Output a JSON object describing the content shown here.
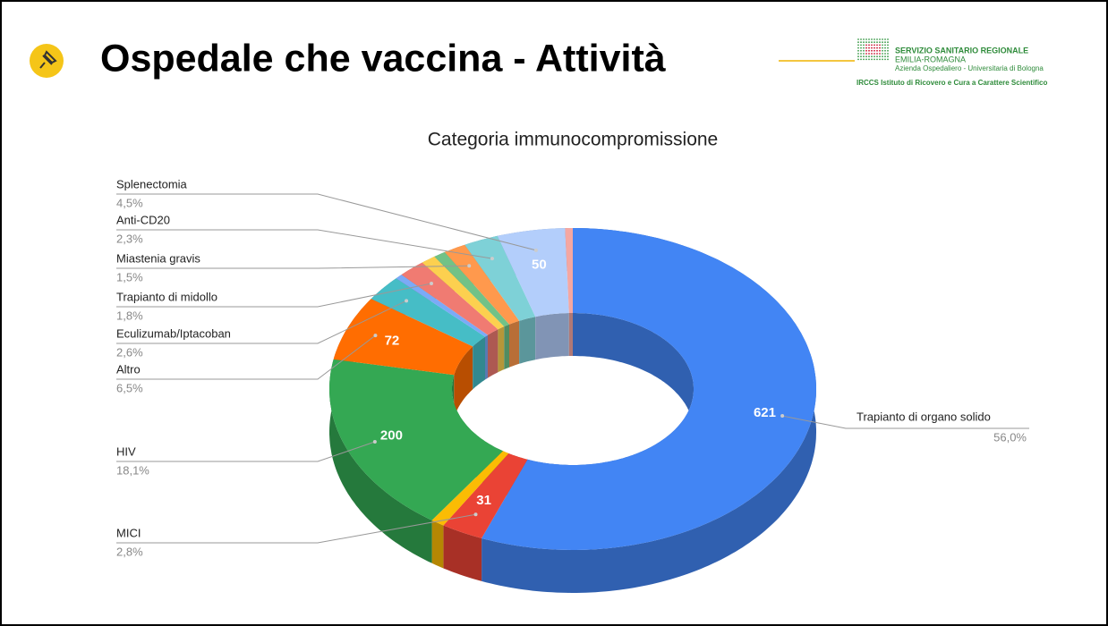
{
  "header": {
    "title": "Ospedale che vaccina - Attività",
    "logo": [
      "SERVIZIO SANITARIO REGIONALE",
      "EMILIA-ROMAGNA",
      "Azienda Ospedaliero - Universitaria di Bologna",
      "IRCCS Istituto di Ricovero e Cura a Carattere Scientifico"
    ]
  },
  "chart_data": {
    "type": "pie",
    "donut": true,
    "title": "Categoria immunocompromissione",
    "categories": [
      "Trapianto di organo solido",
      "MICI",
      null,
      "HIV",
      "Altro",
      "Eculizumab/Iptacoban",
      null,
      "Trapianto di midollo",
      null,
      null,
      "Miastenia gravis",
      "Anti-CD20",
      "Splenectomia",
      null
    ],
    "values": [
      56.0,
      2.8,
      0.9,
      18.1,
      6.5,
      2.6,
      0.5,
      1.8,
      1.0,
      0.8,
      1.5,
      2.3,
      4.5,
      0.5
    ],
    "value_labels": [
      "56,0%",
      "2,8%",
      null,
      "18,1%",
      "6,5%",
      "2,6%",
      null,
      "1,8%",
      null,
      null,
      "1,5%",
      "2,3%",
      "4,5%",
      null
    ],
    "counts": [
      621,
      31,
      null,
      200,
      72,
      null,
      null,
      null,
      null,
      null,
      null,
      null,
      50,
      null
    ],
    "colors": [
      "#4285f4",
      "#ea4335",
      "#fbbc04",
      "#34a853",
      "#ff6d01",
      "#46bdc6",
      "#7baaf7",
      "#f07b72",
      "#fcd04f",
      "#71c287",
      "#ff994d",
      "#7ed1d7",
      "#b3cefb",
      "#f4a7a2"
    ]
  }
}
